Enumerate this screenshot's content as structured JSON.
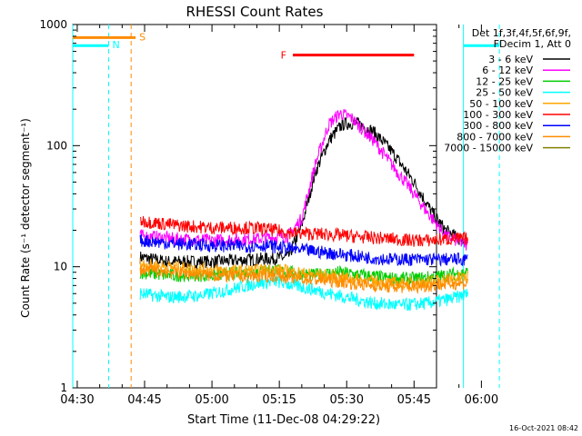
{
  "chart_data": {
    "type": "line",
    "title": "RHESSI Count Rates",
    "xlabel": "Start Time (11-Dec-08 04:29:22)",
    "ylabel": "Count Rate (s⁻¹ detector segment⁻¹)",
    "yscale": "log",
    "ylim": [
      1,
      1000
    ],
    "xlim_minutes": [
      -1,
      80
    ],
    "x_unit": "minutes after 04:30 UT",
    "x_ticks": [
      {
        "v": 0,
        "label": "04:30"
      },
      {
        "v": 15,
        "label": "04:45"
      },
      {
        "v": 30,
        "label": "05:00"
      },
      {
        "v": 45,
        "label": "05:15"
      },
      {
        "v": 60,
        "label": "05:30"
      },
      {
        "v": 75,
        "label": "05:45"
      },
      {
        "v": 90,
        "label": "06:00"
      }
    ],
    "y_ticks": [
      {
        "v": 1,
        "label": "1"
      },
      {
        "v": 10,
        "label": "10"
      },
      {
        "v": 100,
        "label": "100"
      },
      {
        "v": 1000,
        "label": "1000"
      }
    ],
    "legend_header": [
      "Det 1f,3f,4f,5f,6f,9f,",
      "FDecim 1, Att 0"
    ],
    "series": [
      {
        "name": "3 - 6 keV",
        "color": "#000000",
        "points": [
          [
            14,
            12
          ],
          [
            20,
            11
          ],
          [
            30,
            11
          ],
          [
            40,
            11.5
          ],
          [
            47,
            12
          ],
          [
            50,
            22
          ],
          [
            53,
            60
          ],
          [
            56,
            110
          ],
          [
            59,
            150
          ],
          [
            62,
            155
          ],
          [
            66,
            130
          ],
          [
            70,
            90
          ],
          [
            75,
            50
          ],
          [
            79,
            28
          ],
          [
            82,
            20
          ],
          [
            85,
            17
          ],
          [
            87,
            16
          ]
        ]
      },
      {
        "name": "6 - 12 keV",
        "color": "#ff00ff",
        "points": [
          [
            14,
            18
          ],
          [
            22,
            17
          ],
          [
            30,
            16.5
          ],
          [
            40,
            17
          ],
          [
            47,
            18
          ],
          [
            50,
            25
          ],
          [
            53,
            70
          ],
          [
            56,
            150
          ],
          [
            58.5,
            185
          ],
          [
            61,
            170
          ],
          [
            66,
            110
          ],
          [
            70,
            70
          ],
          [
            74,
            45
          ],
          [
            78,
            28
          ],
          [
            82,
            18
          ],
          [
            87,
            15
          ]
        ]
      },
      {
        "name": "12 - 25 keV",
        "color": "#00cc00",
        "points": [
          [
            14,
            9
          ],
          [
            20,
            8.5
          ],
          [
            30,
            8.5
          ],
          [
            38,
            9
          ],
          [
            42,
            9.5
          ],
          [
            47,
            9
          ],
          [
            52,
            8.5
          ],
          [
            58,
            9
          ],
          [
            64,
            8.5
          ],
          [
            70,
            8
          ],
          [
            76,
            8
          ],
          [
            82,
            8.5
          ],
          [
            87,
            9
          ]
        ]
      },
      {
        "name": "25 - 50 keV",
        "color": "#00ffff",
        "points": [
          [
            14,
            6
          ],
          [
            20,
            5.6
          ],
          [
            28,
            5.8
          ],
          [
            34,
            6.5
          ],
          [
            40,
            7.3
          ],
          [
            44,
            7.6
          ],
          [
            50,
            6.8
          ],
          [
            58,
            5.8
          ],
          [
            66,
            5
          ],
          [
            72,
            4.8
          ],
          [
            78,
            5
          ],
          [
            84,
            5.5
          ],
          [
            87,
            6
          ]
        ]
      },
      {
        "name": "50 - 100 keV",
        "color": "#ffa500",
        "points": [
          [
            14,
            10.5
          ],
          [
            20,
            10
          ],
          [
            28,
            9.5
          ],
          [
            34,
            9.2
          ],
          [
            40,
            9.3
          ],
          [
            44,
            9.5
          ],
          [
            50,
            8.8
          ],
          [
            58,
            8.2
          ],
          [
            66,
            7.5
          ],
          [
            72,
            7.2
          ],
          [
            78,
            7.5
          ],
          [
            84,
            8
          ],
          [
            87,
            8.2
          ]
        ]
      },
      {
        "name": "100 - 300 keV",
        "color": "#ff0000",
        "points": [
          [
            14,
            24
          ],
          [
            22,
            22
          ],
          [
            30,
            21
          ],
          [
            38,
            21
          ],
          [
            42,
            20.5
          ],
          [
            48,
            19
          ],
          [
            56,
            18.5
          ],
          [
            64,
            17.5
          ],
          [
            70,
            17
          ],
          [
            74,
            16.5
          ],
          [
            78,
            16.5
          ],
          [
            84,
            17
          ],
          [
            87,
            17
          ]
        ]
      },
      {
        "name": "300 - 800 keV",
        "color": "#0000ff",
        "points": [
          [
            14,
            16.5
          ],
          [
            22,
            15.5
          ],
          [
            30,
            15
          ],
          [
            38,
            14.8
          ],
          [
            42,
            15
          ],
          [
            48,
            14
          ],
          [
            56,
            13
          ],
          [
            64,
            12
          ],
          [
            70,
            11.5
          ],
          [
            76,
            11.5
          ],
          [
            82,
            11.5
          ],
          [
            87,
            11.5
          ]
        ]
      },
      {
        "name": "800 - 7000 keV",
        "color": "#ff8c00",
        "points": [
          [
            14,
            9.5
          ],
          [
            22,
            9
          ],
          [
            30,
            8.5
          ],
          [
            38,
            8.3
          ],
          [
            44,
            8.5
          ],
          [
            50,
            8
          ],
          [
            58,
            7.6
          ],
          [
            66,
            7
          ],
          [
            72,
            6.8
          ],
          [
            78,
            7
          ],
          [
            84,
            7.3
          ],
          [
            87,
            7.3
          ]
        ]
      },
      {
        "name": "7000 - 15000 keV",
        "color": "#808000",
        "points": []
      }
    ],
    "annotations": [
      {
        "label": "S",
        "color": "#ff8c00",
        "x_start": -1,
        "x_end": 13,
        "y": 780
      },
      {
        "label": "N",
        "color": "#00ffff",
        "x_start": -1,
        "x_end": 7,
        "y": 670
      },
      {
        "label": "",
        "color": "#00ffff",
        "x_start": 86,
        "x_end": 94,
        "y": 670
      },
      {
        "label": "F",
        "color": "#ff0000",
        "x_start": 48,
        "x_end": 75,
        "y": 560
      }
    ],
    "vertical_lines": [
      {
        "x": -1,
        "color": "#00ffff",
        "style": "solid"
      },
      {
        "x": 7,
        "color": "#00ffff",
        "style": "dashed"
      },
      {
        "x": 12,
        "color": "#ff8c00",
        "style": "dashed"
      },
      {
        "x": 86,
        "color": "#00ffff",
        "style": "solid"
      },
      {
        "x": 94,
        "color": "#00ffff",
        "style": "dashed"
      }
    ]
  },
  "footer": {
    "date": "16-Oct-2021 08:42"
  }
}
